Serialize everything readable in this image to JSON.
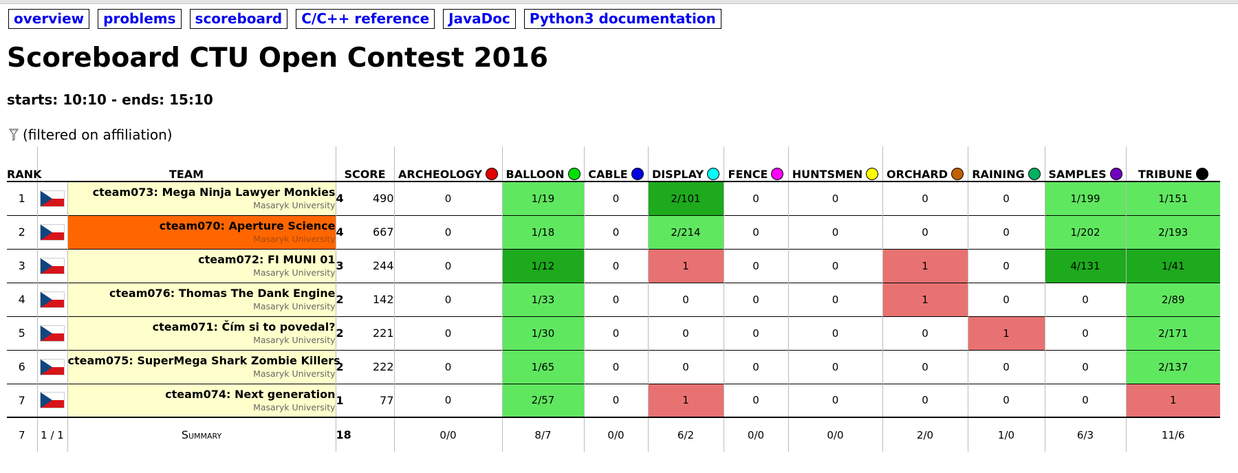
{
  "menu": [
    {
      "label": "overview"
    },
    {
      "label": "problems"
    },
    {
      "label": "scoreboard"
    },
    {
      "label": "C/C++ reference"
    },
    {
      "label": "JavaDoc"
    },
    {
      "label": "Python3 documentation"
    }
  ],
  "page": {
    "title": "Scoreboard CTU Open Contest 2016",
    "times": "starts: 10:10 - ends: 15:10",
    "filter": "(filtered on affiliation)"
  },
  "headers": {
    "rank": "RANK",
    "team": "TEAM",
    "score": "SCORE"
  },
  "problems": [
    {
      "name": "ARCHEOLOGY",
      "color": "#e00000"
    },
    {
      "name": "BALLOON",
      "color": "#00e000"
    },
    {
      "name": "CABLE",
      "color": "#0000e0"
    },
    {
      "name": "DISPLAY",
      "color": "#00ffff"
    },
    {
      "name": "FENCE",
      "color": "#ff00ff"
    },
    {
      "name": "HUNTSMEN",
      "color": "#ffff00"
    },
    {
      "name": "ORCHARD",
      "color": "#c06000"
    },
    {
      "name": "RAINING",
      "color": "#00b060"
    },
    {
      "name": "SAMPLES",
      "color": "#7000c0"
    },
    {
      "name": "TRIBUNE",
      "color": "#000000"
    }
  ],
  "colors": {
    "solved": "#60e760",
    "first": "#1daa1d",
    "wrong": "#e87272",
    "team_bg": "#ffffcc",
    "team_highlight": "#ff6600"
  },
  "flag_icon": "czech-flag-icon",
  "teams": [
    {
      "rank": "1",
      "name": "cteam073: Mega Ninja Lawyer Monkies",
      "affiliation": "Masaryk University",
      "solved": "4",
      "points": "490",
      "highlight": false,
      "cells": [
        [
          "0",
          ""
        ],
        [
          "1/19",
          "s"
        ],
        [
          "0",
          ""
        ],
        [
          "2/101",
          "f"
        ],
        [
          "0",
          ""
        ],
        [
          "0",
          ""
        ],
        [
          "0",
          ""
        ],
        [
          "0",
          ""
        ],
        [
          "1/199",
          "s"
        ],
        [
          "1/151",
          "s"
        ]
      ]
    },
    {
      "rank": "2",
      "name": "cteam070: Aperture Science",
      "affiliation": "Masaryk University",
      "solved": "4",
      "points": "667",
      "highlight": true,
      "cells": [
        [
          "0",
          ""
        ],
        [
          "1/18",
          "s"
        ],
        [
          "0",
          ""
        ],
        [
          "2/214",
          "s"
        ],
        [
          "0",
          ""
        ],
        [
          "0",
          ""
        ],
        [
          "0",
          ""
        ],
        [
          "0",
          ""
        ],
        [
          "1/202",
          "s"
        ],
        [
          "2/193",
          "s"
        ]
      ]
    },
    {
      "rank": "3",
      "name": "cteam072: FI MUNI 01",
      "affiliation": "Masaryk University",
      "solved": "3",
      "points": "244",
      "highlight": false,
      "cells": [
        [
          "0",
          ""
        ],
        [
          "1/12",
          "f"
        ],
        [
          "0",
          ""
        ],
        [
          "1",
          "w"
        ],
        [
          "0",
          ""
        ],
        [
          "0",
          ""
        ],
        [
          "1",
          "w"
        ],
        [
          "0",
          ""
        ],
        [
          "4/131",
          "f"
        ],
        [
          "1/41",
          "f"
        ]
      ]
    },
    {
      "rank": "4",
      "name": "cteam076: Thomas The Dank Engine",
      "affiliation": "Masaryk University",
      "solved": "2",
      "points": "142",
      "highlight": false,
      "cells": [
        [
          "0",
          ""
        ],
        [
          "1/33",
          "s"
        ],
        [
          "0",
          ""
        ],
        [
          "0",
          ""
        ],
        [
          "0",
          ""
        ],
        [
          "0",
          ""
        ],
        [
          "1",
          "w"
        ],
        [
          "0",
          ""
        ],
        [
          "0",
          ""
        ],
        [
          "2/89",
          "s"
        ]
      ]
    },
    {
      "rank": "5",
      "name": "cteam071: Čím si to povedal?",
      "affiliation": "Masaryk University",
      "solved": "2",
      "points": "221",
      "highlight": false,
      "cells": [
        [
          "0",
          ""
        ],
        [
          "1/30",
          "s"
        ],
        [
          "0",
          ""
        ],
        [
          "0",
          ""
        ],
        [
          "0",
          ""
        ],
        [
          "0",
          ""
        ],
        [
          "0",
          ""
        ],
        [
          "1",
          "w"
        ],
        [
          "0",
          ""
        ],
        [
          "2/171",
          "s"
        ]
      ]
    },
    {
      "rank": "6",
      "name": "cteam075: SuperMega Shark Zombie Killers",
      "affiliation": "Masaryk University",
      "solved": "2",
      "points": "222",
      "highlight": false,
      "cells": [
        [
          "0",
          ""
        ],
        [
          "1/65",
          "s"
        ],
        [
          "0",
          ""
        ],
        [
          "0",
          ""
        ],
        [
          "0",
          ""
        ],
        [
          "0",
          ""
        ],
        [
          "0",
          ""
        ],
        [
          "0",
          ""
        ],
        [
          "0",
          ""
        ],
        [
          "2/137",
          "s"
        ]
      ]
    },
    {
      "rank": "7",
      "name": "cteam074: Next generation",
      "affiliation": "Masaryk University",
      "solved": "1",
      "points": "77",
      "highlight": false,
      "cells": [
        [
          "0",
          ""
        ],
        [
          "2/57",
          "s"
        ],
        [
          "0",
          ""
        ],
        [
          "1",
          "w"
        ],
        [
          "0",
          ""
        ],
        [
          "0",
          ""
        ],
        [
          "0",
          ""
        ],
        [
          "0",
          ""
        ],
        [
          "0",
          ""
        ],
        [
          "1",
          "w"
        ]
      ]
    }
  ],
  "summary": {
    "count": "7",
    "fraction": "1 / 1",
    "label": "Summary",
    "total": "18",
    "cells": [
      "0/0",
      "8/7",
      "0/0",
      "6/2",
      "0/0",
      "0/0",
      "2/0",
      "1/0",
      "6/3",
      "11/6"
    ]
  }
}
